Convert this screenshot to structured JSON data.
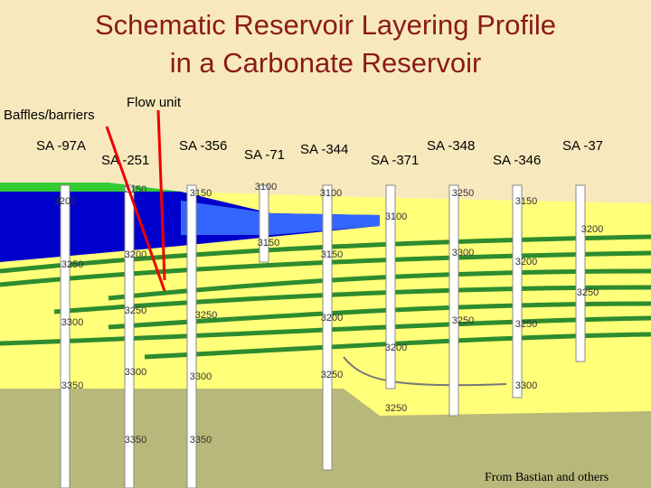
{
  "title": [
    "Schematic Reservoir Layering Profile",
    "in a Carbonate Reservoir"
  ],
  "annotations": {
    "baffles": "Baffles/barriers",
    "flow_unit": "Flow unit"
  },
  "wells": [
    "SA -97A",
    "SA -251",
    "SA -356",
    "SA -71",
    "SA -344",
    "SA -371",
    "SA -348",
    "SA -346",
    "SA -37"
  ],
  "depth_labels": [
    3200,
    3150,
    3150,
    3100,
    3100,
    3250,
    3150,
    3100,
    3200,
    3200,
    3150,
    3150,
    3300,
    3200,
    3250,
    3250,
    3300,
    3250,
    3250,
    3200,
    3250,
    3250,
    3200,
    3300,
    3300,
    3250,
    3300,
    3350,
    3250,
    3350,
    3350
  ],
  "credit": "From Bastian and others"
}
